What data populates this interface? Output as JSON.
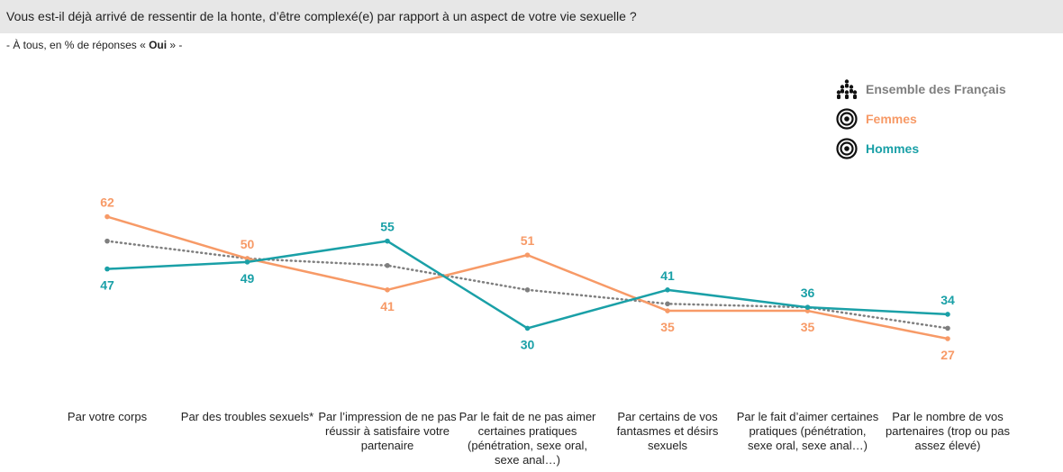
{
  "question": "Vous est-il déjà arrivé de ressentir de la honte, d’être complexé(e) par rapport à un aspect de votre vie sexuelle ?",
  "subtitle": {
    "prefix": "- À tous, en % de réponses « ",
    "bold": "Oui",
    "suffix": " » -"
  },
  "legend": [
    {
      "label": "Ensemble des Français",
      "icon": "people-group-icon",
      "color": "#7f7f7f"
    },
    {
      "label": "Femmes",
      "icon": "target-icon",
      "color": "#f79a67"
    },
    {
      "label": "Hommes",
      "icon": "target-icon",
      "color": "#1aa0a7"
    }
  ],
  "chart_data": {
    "type": "line",
    "categories": [
      "Par votre corps",
      "Par des troubles sexuels*",
      "Par l’impression de ne pas réussir à satisfaire votre partenaire",
      "Par le fait de ne pas aimer certaines pratiques (pénétration, sexe oral, sexe anal…)",
      "Par certains de vos fantasmes et désirs sexuels",
      "Par le fait d’aimer certaines pratiques (pénétration, sexe oral, sexe anal…)",
      "Par le nombre de vos partenaires (trop ou pas assez élevé)"
    ],
    "series": [
      {
        "name": "Ensemble des Français",
        "color": "#7f7f7f",
        "style": "dotted",
        "labels": false,
        "values": [
          55,
          50,
          48,
          41,
          37,
          36,
          30
        ]
      },
      {
        "name": "Femmes",
        "color": "#f79a67",
        "style": "solid",
        "labels": true,
        "values": [
          62,
          50,
          41,
          51,
          35,
          35,
          27
        ]
      },
      {
        "name": "Hommes",
        "color": "#1aa0a7",
        "style": "solid",
        "labels": true,
        "values": [
          47,
          49,
          55,
          30,
          41,
          36,
          34
        ]
      }
    ],
    "ylim": [
      0,
      100
    ],
    "grid": false,
    "legend_position": "top-right"
  }
}
